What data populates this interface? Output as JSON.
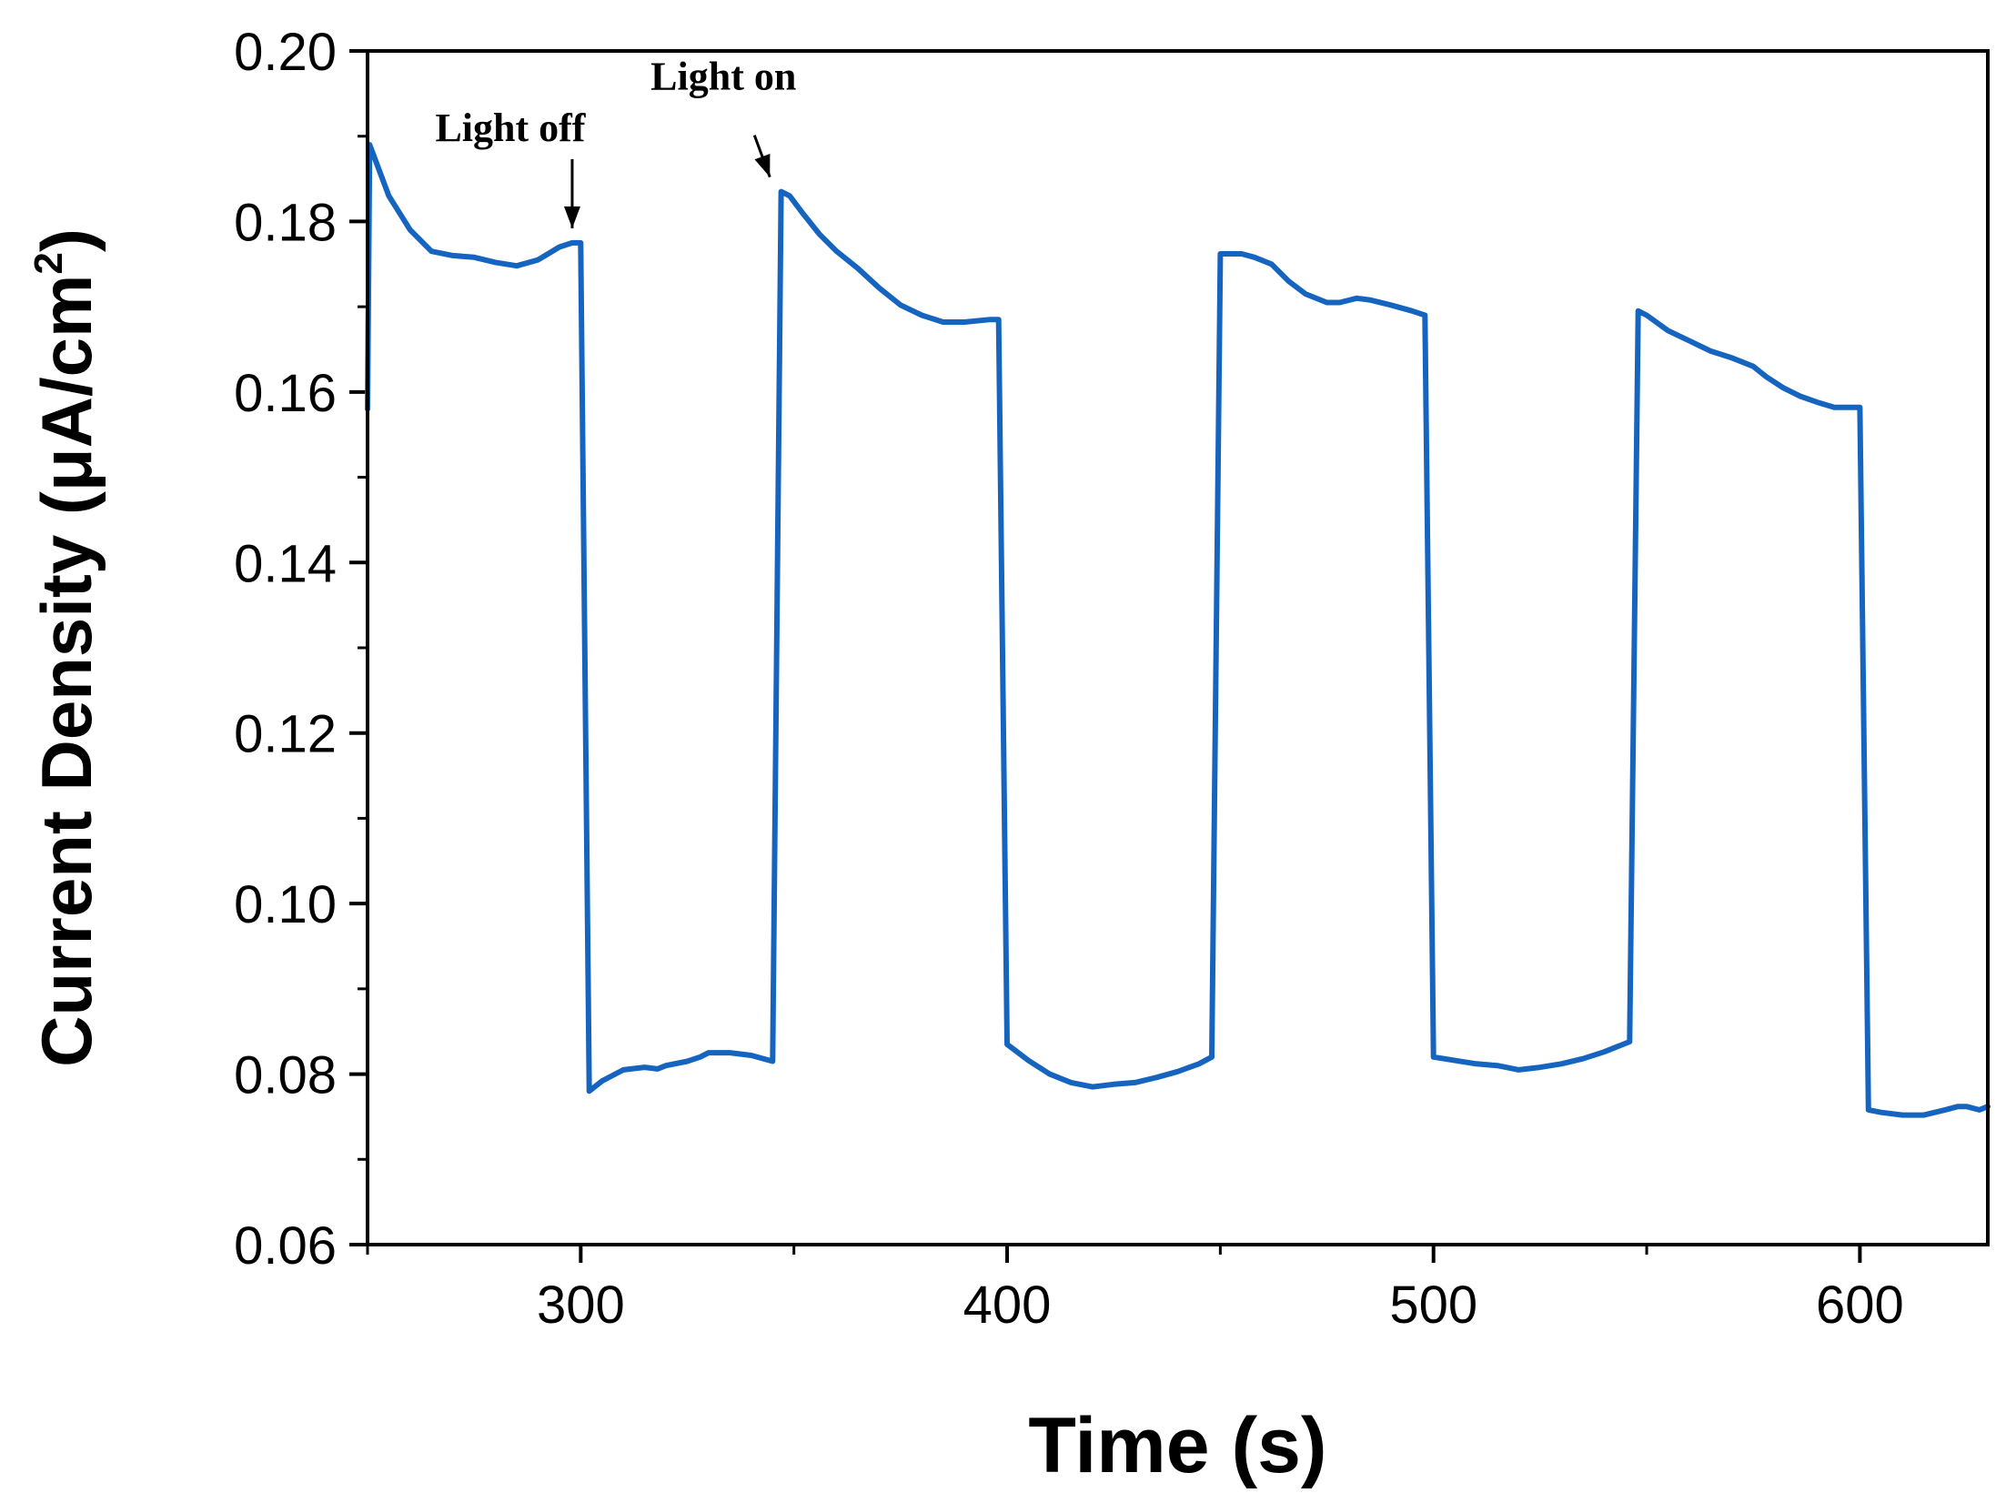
{
  "chart_data": {
    "type": "line",
    "title": "",
    "xlabel": "Time (s)",
    "ylabel": "Current Density (μA/cm²)",
    "ylabel_parts": {
      "main": "Current Density (μA/cm",
      "sup": "2",
      "close": ")"
    },
    "xlim": [
      250,
      630
    ],
    "ylim": [
      0.06,
      0.2
    ],
    "x_ticks": [
      300,
      400,
      500,
      600
    ],
    "x_tick_labels": [
      "300",
      "400",
      "500",
      "600"
    ],
    "x_minor_ticks": [
      250,
      350,
      450,
      550
    ],
    "y_ticks": [
      0.06,
      0.08,
      0.1,
      0.12,
      0.14,
      0.16,
      0.18,
      0.2
    ],
    "y_tick_labels": [
      "0.06",
      "0.08",
      "0.10",
      "0.12",
      "0.14",
      "0.16",
      "0.18",
      "0.20"
    ],
    "y_minor_ticks": [
      0.07,
      0.09,
      0.11,
      0.13,
      0.15,
      0.17,
      0.19
    ],
    "grid": false,
    "line_color": "#1565C0",
    "series": [
      {
        "x": [
          250,
          250.5,
          255,
          260,
          265,
          270,
          275,
          280,
          285,
          290,
          295,
          298,
          300,
          302,
          305,
          310,
          315,
          318,
          320,
          325,
          328,
          330,
          335,
          340,
          345,
          347,
          349,
          352,
          356,
          360,
          365,
          370,
          375,
          380,
          385,
          390,
          396,
          398,
          400,
          405,
          410,
          415,
          420,
          425,
          430,
          435,
          440,
          445,
          448,
          450,
          452,
          455,
          458,
          462,
          466,
          470,
          475,
          478,
          482,
          485,
          490,
          495,
          498,
          500,
          505,
          510,
          515,
          520,
          525,
          530,
          535,
          540,
          546,
          548,
          550,
          555,
          560,
          565,
          570,
          575,
          578,
          582,
          586,
          590,
          594,
          598,
          600,
          602,
          605,
          610,
          615,
          620,
          623,
          625,
          628,
          630
        ],
        "values": [
          0.158,
          0.189,
          0.183,
          0.179,
          0.1765,
          0.176,
          0.1758,
          0.1752,
          0.1748,
          0.1755,
          0.177,
          0.1775,
          0.1775,
          0.078,
          0.0792,
          0.0805,
          0.0808,
          0.0806,
          0.081,
          0.0815,
          0.082,
          0.0825,
          0.0825,
          0.0822,
          0.0815,
          0.1835,
          0.183,
          0.181,
          0.1785,
          0.1765,
          0.1745,
          0.1722,
          0.1702,
          0.169,
          0.1682,
          0.1682,
          0.1685,
          0.1685,
          0.0835,
          0.0816,
          0.08,
          0.079,
          0.0785,
          0.0788,
          0.079,
          0.0796,
          0.0803,
          0.0812,
          0.082,
          0.1762,
          0.1762,
          0.1762,
          0.1758,
          0.175,
          0.173,
          0.1715,
          0.1705,
          0.1705,
          0.171,
          0.1708,
          0.1702,
          0.1695,
          0.169,
          0.082,
          0.0816,
          0.0812,
          0.081,
          0.0805,
          0.0808,
          0.0812,
          0.0818,
          0.0826,
          0.0838,
          0.1695,
          0.169,
          0.1672,
          0.166,
          0.1648,
          0.164,
          0.163,
          0.1618,
          0.1605,
          0.1595,
          0.1588,
          0.1582,
          0.1582,
          0.1582,
          0.0758,
          0.0755,
          0.0752,
          0.0752,
          0.0758,
          0.0762,
          0.0762,
          0.0758,
          0.0762
        ]
      }
    ],
    "annotations": [
      {
        "text": "Light off",
        "x": 298,
        "y": 0.1775
      },
      {
        "text": "Light on",
        "x": 345,
        "y": 0.1835
      }
    ]
  }
}
